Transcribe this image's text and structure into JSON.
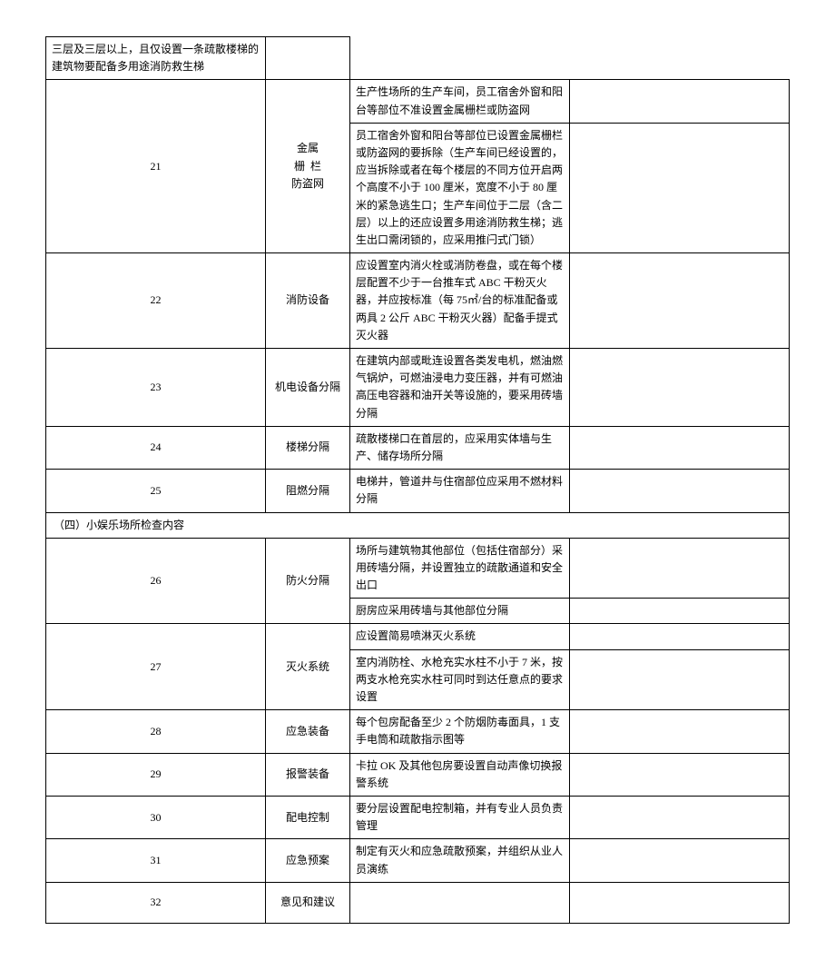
{
  "rows": [
    {
      "type": "sub",
      "desc": "三层及三层以上，且仅设置一条疏散楼梯的建筑物要配备多用途消防救生梯"
    },
    {
      "type": "sub_first",
      "num": "21",
      "cat": "金属<br>栅&nbsp;&nbsp;栏<br>防盗网",
      "rowspan": 2,
      "desc": "生产性场所的生产车间，员工宿舍外窗和阳台等部位不准设置金属栅栏或防盗网"
    },
    {
      "type": "sub",
      "desc": "员工宿舍外窗和阳台等部位已设置金属栅栏或防盗网的要拆除（生产车间已经设置的，应当拆除或者在每个楼层的不同方位开启两个高度不小于 100 厘米，宽度不小于 80 厘米的紧急逃生口；生产车间位于二层（含二层）以上的还应设置多用途消防救生梯；逃生出口需闭锁的，应采用推闩式门锁）"
    },
    {
      "type": "row",
      "num": "22",
      "cat": "消防设备",
      "desc": "应设置室内消火栓或消防卷盘，或在每个楼层配置不少于一台推车式 ABC 干粉灭火器，并应按标准（每 75㎡/台的标准配备或两具 2 公斤 ABC 干粉灭火器）配备手提式灭火器"
    },
    {
      "type": "row",
      "num": "23",
      "cat": "机电设备分隔",
      "desc": "在建筑内部或毗连设置各类发电机，燃油燃气锅炉，可燃油浸电力变压器，并有可燃油高压电容器和油开关等设施的，要采用砖墙分隔"
    },
    {
      "type": "row",
      "num": "24",
      "cat": "楼梯分隔",
      "desc": "疏散楼梯口在首层的，应采用实体墙与生产、储存场所分隔"
    },
    {
      "type": "row",
      "num": "25",
      "cat": "阻燃分隔",
      "desc": "电梯井，管道井与住宿部位应采用不燃材料分隔"
    },
    {
      "type": "section",
      "label": "（四）小娱乐场所检查内容"
    },
    {
      "type": "sub_first",
      "num": "26",
      "cat": "防火分隔",
      "rowspan": 2,
      "desc": "场所与建筑物其他部位（包括住宿部分）采用砖墙分隔，并设置独立的疏散通道和安全出口"
    },
    {
      "type": "sub",
      "desc": "厨房应采用砖墙与其他部位分隔"
    },
    {
      "type": "sub_first",
      "num": "27",
      "cat": "灭火系统",
      "rowspan": 2,
      "desc": "应设置简易喷淋灭火系统"
    },
    {
      "type": "sub",
      "desc": "室内消防栓、水枪充实水柱不小于 7 米，按两支水枪充实水柱可同时到达任意点的要求设置"
    },
    {
      "type": "row",
      "num": "28",
      "cat": "应急装备",
      "desc": "每个包房配备至少 2 个防烟防毒面具，1 支手电筒和疏散指示图等"
    },
    {
      "type": "row",
      "num": "29",
      "cat": "报警装备",
      "desc": "卡拉 OK 及其他包房要设置自动声像切换报警系统"
    },
    {
      "type": "row",
      "num": "30",
      "cat": "配电控制",
      "desc": "要分层设置配电控制箱，并有专业人员负责管理"
    },
    {
      "type": "row",
      "num": "31",
      "cat": "应急预案",
      "desc": "制定有灭火和应急疏散预案，并组织从业人员演练"
    },
    {
      "type": "row",
      "num": "32",
      "cat": "意见和建议",
      "desc": "",
      "tall": true
    }
  ]
}
